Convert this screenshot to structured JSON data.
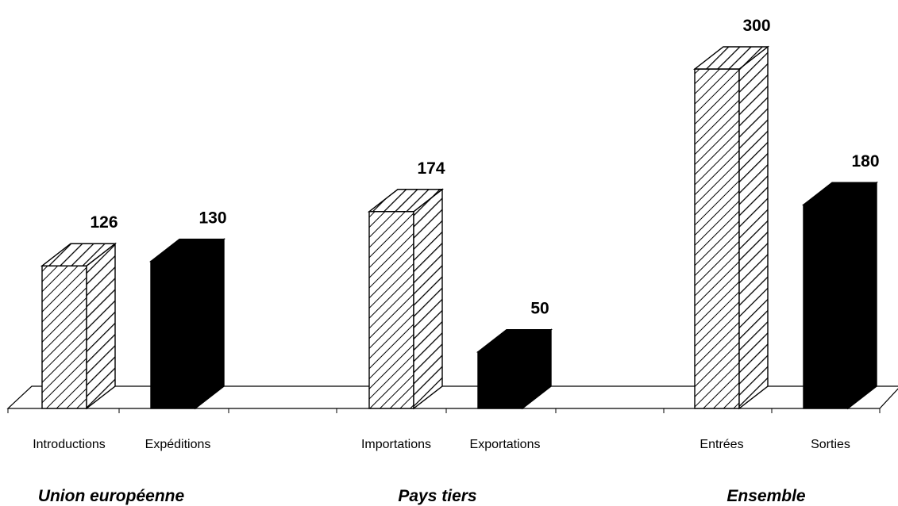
{
  "chart_data": {
    "type": "bar",
    "style": "3d-columns",
    "groups": [
      {
        "name": "Union européenne",
        "bars": [
          {
            "category": "Introductions",
            "value": 126,
            "fill": "hatched"
          },
          {
            "category": "Expéditions",
            "value": 130,
            "fill": "solid"
          }
        ]
      },
      {
        "name": "Pays tiers",
        "bars": [
          {
            "category": "Importations",
            "value": 174,
            "fill": "hatched"
          },
          {
            "category": "Exportations",
            "value": 50,
            "fill": "solid"
          }
        ]
      },
      {
        "name": "Ensemble",
        "bars": [
          {
            "category": "Entrées",
            "value": 300,
            "fill": "hatched"
          },
          {
            "category": "Sorties",
            "value": 180,
            "fill": "solid"
          }
        ]
      }
    ],
    "ylim": [
      0,
      300
    ],
    "grid": false,
    "legend": "none",
    "colors": {
      "hatched_fill": "#ffffff",
      "hatch_stroke": "#000000",
      "solid_fill": "#000000"
    }
  }
}
